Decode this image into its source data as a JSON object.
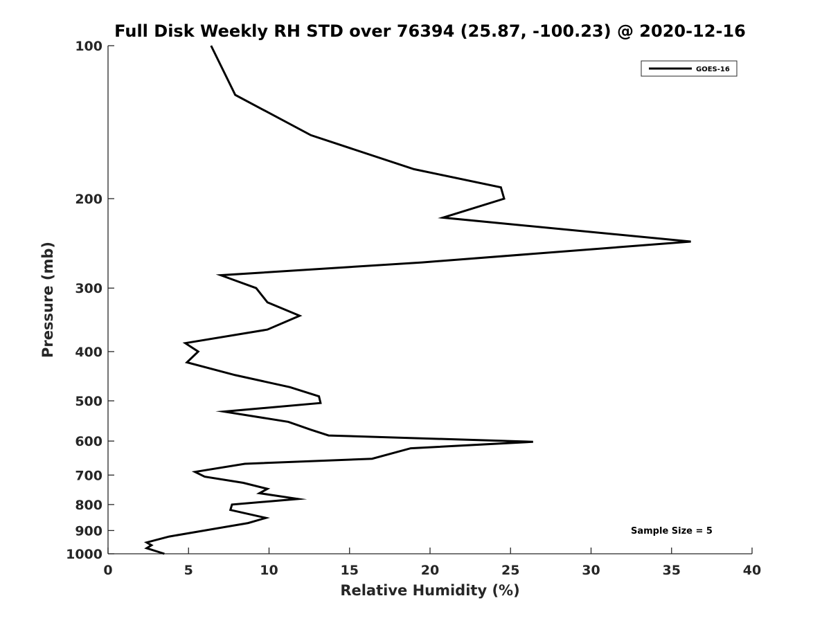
{
  "chart_data": {
    "type": "line",
    "title": "Full Disk Weekly RH STD over 76394 (25.87, -100.23) @ 2020-12-16",
    "xlabel": "Relative Humidity (%)",
    "ylabel": "Pressure (mb)",
    "xlim": [
      0,
      40
    ],
    "ylim": [
      100,
      1000
    ],
    "y_scale": "log",
    "y_reversed": true,
    "x_ticks": [
      0,
      5,
      10,
      15,
      20,
      25,
      30,
      35,
      40
    ],
    "y_ticks": [
      100,
      200,
      300,
      400,
      500,
      600,
      700,
      800,
      900,
      1000
    ],
    "grid": false,
    "legend": {
      "position": "top-right",
      "entries": [
        "GOES-16"
      ]
    },
    "annotations": [
      "Sample Size = 5"
    ],
    "series": [
      {
        "name": "GOES-16",
        "color": "#000000",
        "points": [
          [
            6.4,
            100
          ],
          [
            7.9,
            125
          ],
          [
            12.6,
            150
          ],
          [
            19.0,
            175
          ],
          [
            24.4,
            190
          ],
          [
            24.6,
            200
          ],
          [
            20.8,
            218
          ],
          [
            36.2,
            243
          ],
          [
            19.5,
            267
          ],
          [
            7.0,
            283
          ],
          [
            9.2,
            300
          ],
          [
            9.9,
            320
          ],
          [
            11.9,
            340
          ],
          [
            9.9,
            362
          ],
          [
            4.8,
            385
          ],
          [
            5.6,
            400
          ],
          [
            4.9,
            420
          ],
          [
            7.9,
            445
          ],
          [
            11.3,
            470
          ],
          [
            13.1,
            490
          ],
          [
            13.2,
            505
          ],
          [
            7.2,
            525
          ],
          [
            11.2,
            550
          ],
          [
            12.6,
            570
          ],
          [
            13.7,
            585
          ],
          [
            26.4,
            602
          ],
          [
            18.8,
            620
          ],
          [
            16.4,
            650
          ],
          [
            8.5,
            665
          ],
          [
            5.4,
            690
          ],
          [
            6.0,
            705
          ],
          [
            8.4,
            725
          ],
          [
            9.9,
            745
          ],
          [
            9.4,
            760
          ],
          [
            11.8,
            780
          ],
          [
            7.7,
            800
          ],
          [
            7.6,
            820
          ],
          [
            9.8,
            850
          ],
          [
            8.7,
            870
          ],
          [
            3.8,
            925
          ],
          [
            2.4,
            950
          ],
          [
            2.7,
            962
          ],
          [
            2.4,
            975
          ],
          [
            3.5,
            1000
          ]
        ]
      }
    ]
  }
}
